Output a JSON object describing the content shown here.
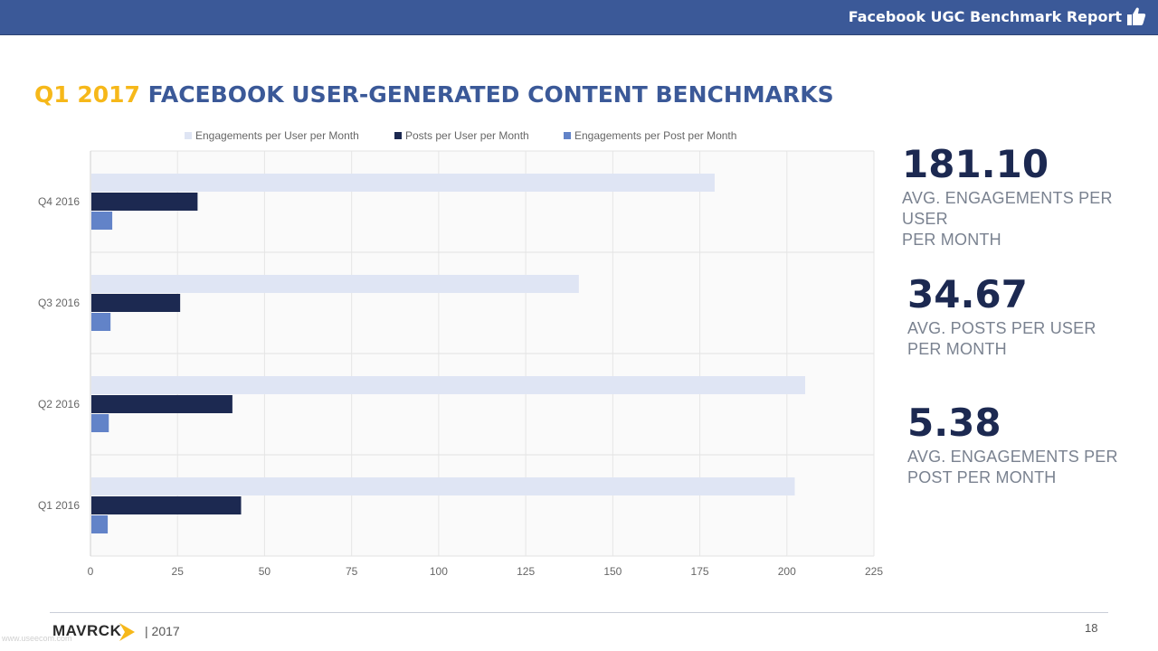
{
  "header": {
    "report_title": "Facebook UGC Benchmark Report",
    "icon": "thumbs-up-icon",
    "bar_color": "#3b5998"
  },
  "headline": {
    "year_part": "Q1 2017",
    "rest": "FACEBOOK USER-GENERATED CONTENT BENCHMARKS",
    "year_color": "#f6b81a",
    "rest_color": "#3b5998"
  },
  "chart_data": {
    "type": "bar",
    "orientation": "horizontal",
    "categories": [
      "Q4 2016",
      "Q3 2016",
      "Q2 2016",
      "Q1 2016"
    ],
    "series": [
      {
        "name": "Engagements per User per Month",
        "color": "#dfe5f4",
        "values": [
          179,
          140,
          205,
          202
        ]
      },
      {
        "name": "Posts per User per Month",
        "color": "#1c2951",
        "values": [
          30.5,
          25.5,
          40.5,
          43
        ]
      },
      {
        "name": "Engagements per Post per Month",
        "color": "#6283c8",
        "values": [
          6,
          5.5,
          5,
          4.7
        ]
      }
    ],
    "x_ticks": [
      "0",
      "25",
      "50",
      "75",
      "100",
      "125",
      "150",
      "175",
      "200",
      "225"
    ],
    "xlim": [
      0,
      225
    ],
    "legend_position": "top",
    "grid": true
  },
  "stats": [
    {
      "value": "181.10",
      "label_line1": "AVG. ENGAGEMENTS PER USER",
      "label_line2": "PER MONTH"
    },
    {
      "value": "34.67",
      "label_line1": "AVG. POSTS PER USER",
      "label_line2": "PER MONTH"
    },
    {
      "value": "5.38",
      "label_line1": "AVG. ENGAGEMENTS PER",
      "label_line2": "POST PER MONTH"
    }
  ],
  "footer": {
    "brand": "MAVRCK",
    "year": "| 2017",
    "page_number": "18",
    "watermark": "www.useecom.com"
  }
}
